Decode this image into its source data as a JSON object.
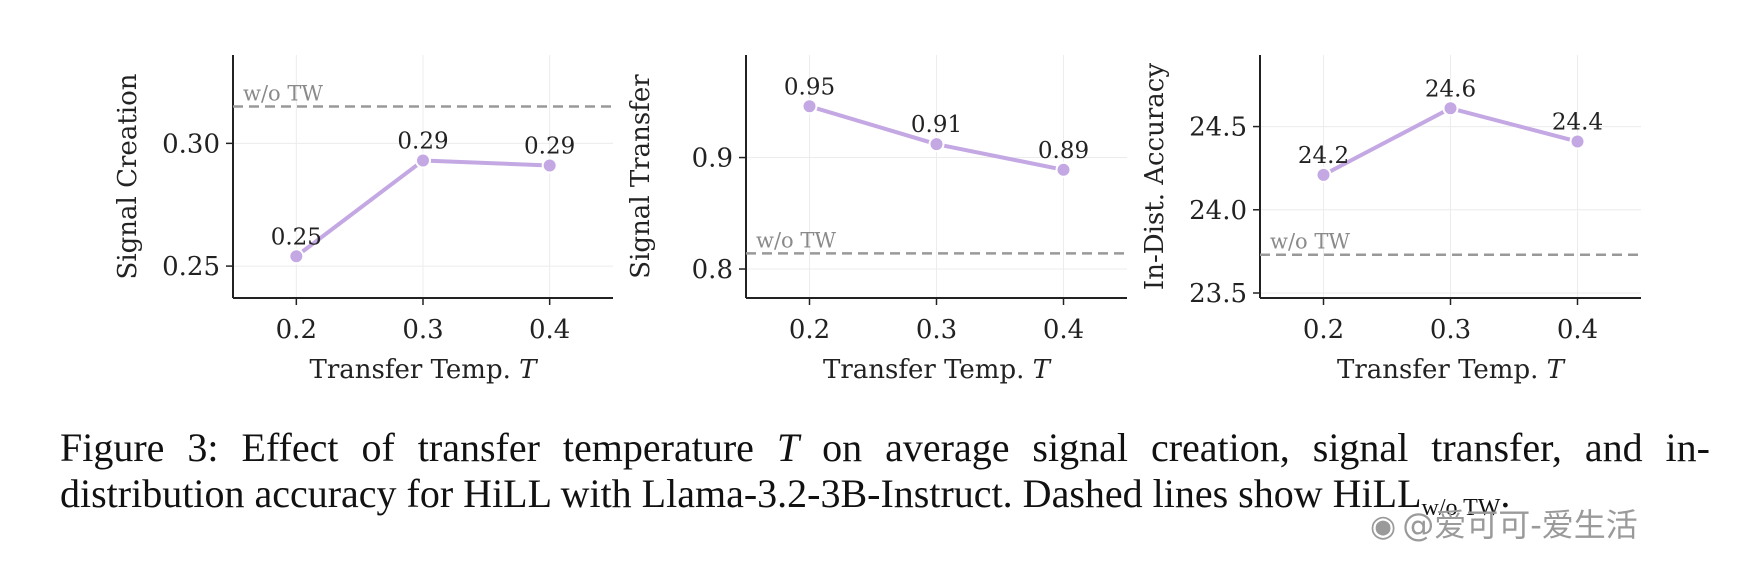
{
  "chart_data": [
    {
      "type": "line",
      "xlabel": "Transfer Temp. ",
      "xlabel_var": "T",
      "ylabel": "Signal Creation",
      "x": [
        0.2,
        0.3,
        0.4
      ],
      "x_tick_labels": [
        "0.2",
        "0.3",
        "0.4"
      ],
      "xlim": [
        0.15,
        0.45
      ],
      "values": [
        0.254,
        0.293,
        0.291
      ],
      "point_labels": [
        "0.25",
        "0.29",
        "0.29"
      ],
      "ylim": [
        0.237,
        0.336
      ],
      "yticks": [
        0.25,
        0.3
      ],
      "ytick_labels": [
        "0.25",
        "0.30"
      ],
      "baseline": {
        "value": 0.315,
        "label": "w/o TW",
        "label_position": "above-left"
      },
      "grid": true,
      "color": "#c3a8e3"
    },
    {
      "type": "line",
      "xlabel": "Transfer Temp. ",
      "xlabel_var": "T",
      "ylabel": "Signal Transfer",
      "x": [
        0.2,
        0.3,
        0.4
      ],
      "x_tick_labels": [
        "0.2",
        "0.3",
        "0.4"
      ],
      "xlim": [
        0.15,
        0.45
      ],
      "values": [
        0.946,
        0.912,
        0.889
      ],
      "point_labels": [
        "0.95",
        "0.91",
        "0.89"
      ],
      "ylim": [
        0.774,
        0.992
      ],
      "yticks": [
        0.8,
        0.9
      ],
      "ytick_labels": [
        "0.8",
        "0.9"
      ],
      "baseline": {
        "value": 0.814,
        "label": "w/o TW",
        "label_position": "above-left"
      },
      "grid": true,
      "color": "#c3a8e3"
    },
    {
      "type": "line",
      "xlabel": "Transfer Temp. ",
      "xlabel_var": "T",
      "ylabel": "In-Dist. Accuracy",
      "x": [
        0.2,
        0.3,
        0.4
      ],
      "x_tick_labels": [
        "0.2",
        "0.3",
        "0.4"
      ],
      "xlim": [
        0.15,
        0.45
      ],
      "values": [
        24.21,
        24.61,
        24.41
      ],
      "point_labels": [
        "24.2",
        "24.6",
        "24.4"
      ],
      "ylim": [
        23.47,
        24.93
      ],
      "yticks": [
        23.5,
        24.0,
        24.5
      ],
      "ytick_labels": [
        "23.5",
        "24.0",
        "24.5"
      ],
      "baseline": {
        "value": 23.73,
        "label": "w/o TW",
        "label_position": "above-left"
      },
      "grid": true,
      "color": "#c3a8e3"
    }
  ],
  "caption": {
    "prefix": "Figure 3:  Effect of transfer temperature ",
    "var": "T",
    "middle": " on average signal creation, signal transfer, and in-distribution accuracy for HiLL with Llama-3.2-3B-Instruct. Dashed lines show HiLL",
    "subscript": "w/o TW",
    "suffix": "."
  },
  "watermark": {
    "text": "@爱可可-爱生活"
  }
}
